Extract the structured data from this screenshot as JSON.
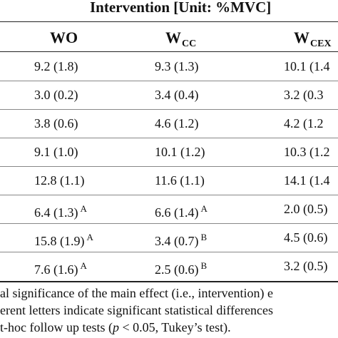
{
  "table": {
    "group_header": "Intervention [Unit: %MVC]",
    "columns": [
      {
        "base": "W",
        "sub": "O",
        "plain": "WO"
      },
      {
        "base": "W",
        "sub": "CC"
      },
      {
        "base": "W",
        "sub": "CEX"
      }
    ],
    "rows": [
      {
        "cells": [
          {
            "value": "9.2 (1.8)",
            "letter": ""
          },
          {
            "value": "9.3 (1.3)",
            "letter": ""
          },
          {
            "value": "10.1 (1.4",
            "letter": ""
          }
        ]
      },
      {
        "cells": [
          {
            "value": "3.0 (0.2)",
            "letter": ""
          },
          {
            "value": "3.4 (0.4)",
            "letter": ""
          },
          {
            "value": "3.2 (0.3",
            "letter": ""
          }
        ]
      },
      {
        "cells": [
          {
            "value": "3.8 (0.6)",
            "letter": ""
          },
          {
            "value": "4.6 (1.2)",
            "letter": ""
          },
          {
            "value": "4.2 (1.2",
            "letter": ""
          }
        ]
      },
      {
        "cells": [
          {
            "value": "9.1 (1.0)",
            "letter": ""
          },
          {
            "value": "10.1 (1.2)",
            "letter": ""
          },
          {
            "value": "10.3 (1.2",
            "letter": ""
          }
        ]
      },
      {
        "cells": [
          {
            "value": "12.8 (1.1)",
            "letter": ""
          },
          {
            "value": "11.6 (1.1)",
            "letter": ""
          },
          {
            "value": "14.1 (1.4",
            "letter": ""
          }
        ]
      },
      {
        "cells": [
          {
            "value": "6.4 (1.3)",
            "letter": "A"
          },
          {
            "value": "6.6 (1.4)",
            "letter": "A"
          },
          {
            "value": "2.0 (0.5)",
            "letter": ""
          }
        ]
      },
      {
        "cells": [
          {
            "value": "15.8 (1.9)",
            "letter": "A"
          },
          {
            "value": "3.4 (0.7)",
            "letter": "B"
          },
          {
            "value": "4.5 (0.6)",
            "letter": ""
          }
        ]
      },
      {
        "cells": [
          {
            "value": "7.6 (1.6)",
            "letter": "A"
          },
          {
            "value": "2.5 (0.6)",
            "letter": "B"
          },
          {
            "value": "3.2 (0.5)",
            "letter": ""
          }
        ]
      }
    ]
  },
  "footnote": {
    "line1": "al significance of the main effect (i.e., intervention) e",
    "line2": "erent letters indicate significant statistical differences",
    "line3_pre": "t-hoc follow up tests (",
    "line3_p": "p",
    "line3_post": " < 0.05, Tukey’s test)."
  }
}
